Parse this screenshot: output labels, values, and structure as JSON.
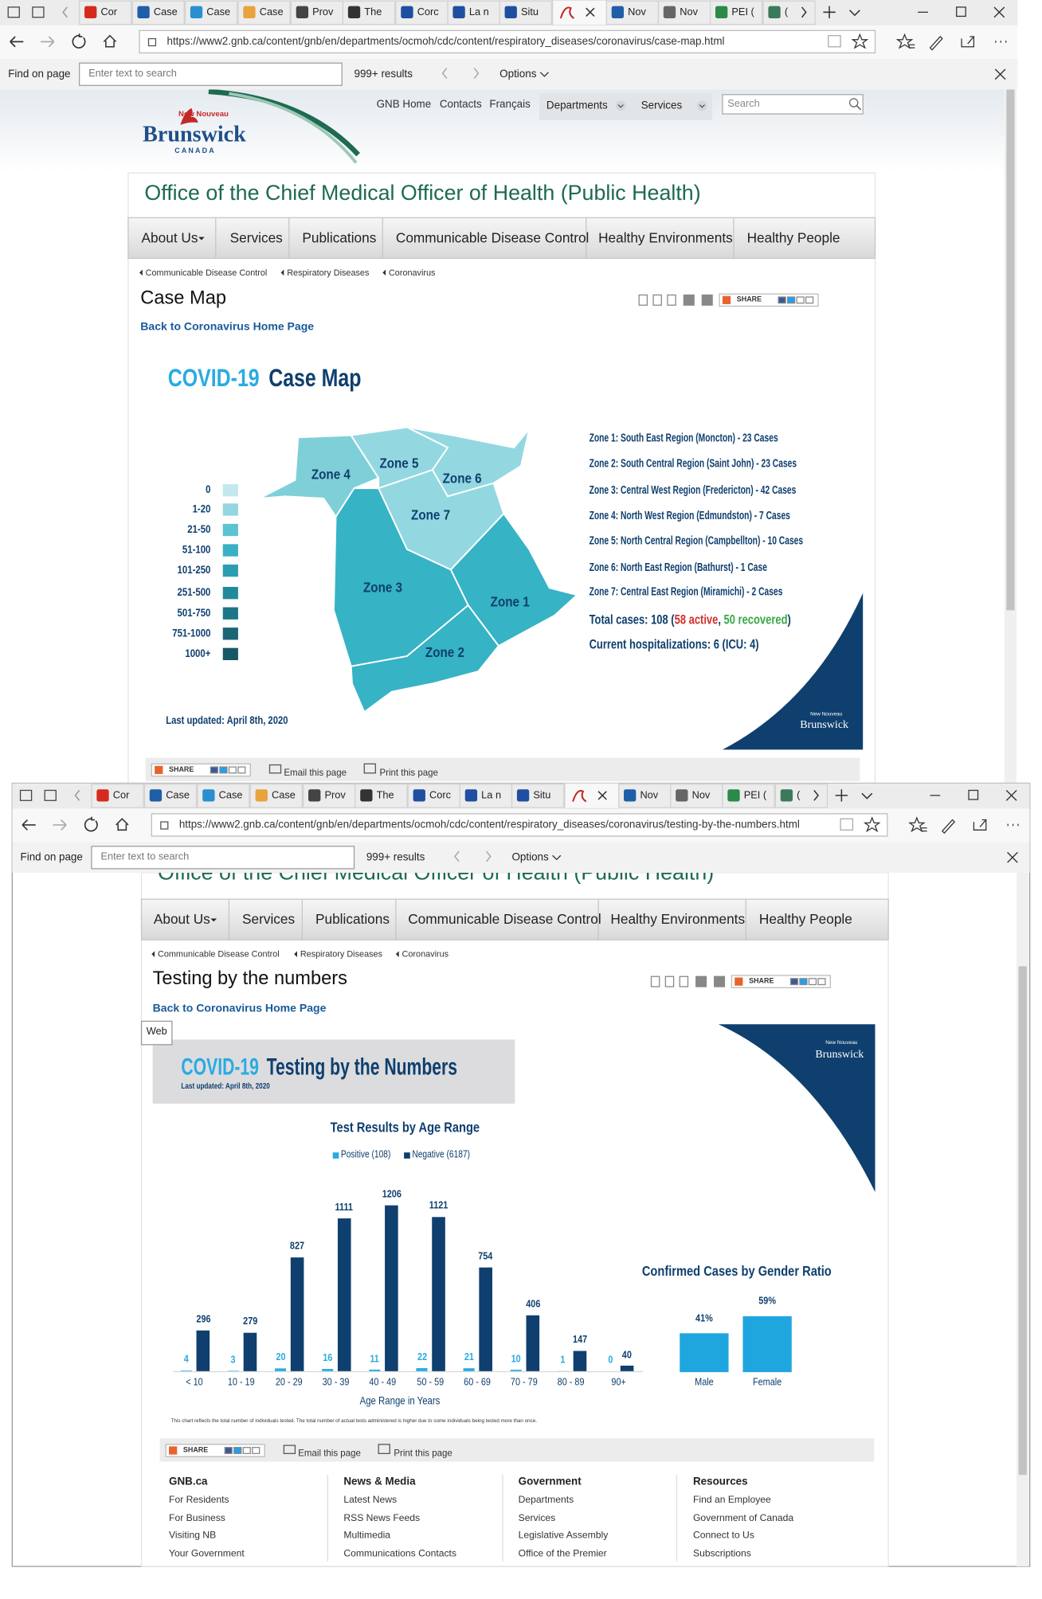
{
  "window1": {
    "tabs": [
      "Cor",
      "Case",
      "Case",
      "Case",
      "Prov",
      "The",
      "Corc",
      "La n",
      "Situ",
      "Nov",
      "Nov",
      "PEI (",
      "("
    ],
    "url": "https://www2.gnb.ca/content/gnb/en/departments/ocmoh/cdc/content/respiratory_diseases/coronavirus/case-map.html",
    "find_bar": {
      "label": "Find on page",
      "placeholder": "Enter text to search",
      "count": "999+ results",
      "options": "Options"
    },
    "header": {
      "logo_top": "New Nouveau",
      "logo": "Brunswick",
      "logo_sub": "C A N A D A",
      "links": [
        "GNB Home",
        "Contacts",
        "Français"
      ],
      "menus": [
        "Departments",
        "Services"
      ],
      "search": "Search"
    },
    "office_title": "Office of the Chief Medical Officer of Health (Public Health)",
    "nav": [
      "About Us",
      "Services",
      "Publications",
      "Communicable Disease Control",
      "Healthy Environments",
      "Healthy People"
    ],
    "breadcrumbs": [
      "Communicable Disease Control",
      "Respiratory Diseases",
      "Coronavirus"
    ],
    "page_title": "Case Map",
    "share": "SHARE",
    "back_link": "Back to Coronavirus Home Page",
    "case_map": {
      "title": "COVID-19",
      "subtitle": "Case Map",
      "legend": {
        "labels": [
          "0",
          "1-20",
          "21-50",
          "51-100",
          "101-250",
          "251-500",
          "501-750",
          "751-1000",
          "1000+"
        ],
        "colors": [
          "#c3e8ef",
          "#94d6e0",
          "#5cc3d2",
          "#39b0c3",
          "#2c9db1",
          "#21899c",
          "#1c7687",
          "#1a6675",
          "#175866"
        ]
      },
      "zone_labels": [
        "Zone 1",
        "Zone 2",
        "Zone 3",
        "Zone 4",
        "Zone 5",
        "Zone 6",
        "Zone 7"
      ],
      "zones": [
        "Zone 1: South East Region (Moncton) - 23 Cases",
        "Zone 2: South Central Region (Saint John) - 23 Cases",
        "Zone 3: Central West Region (Fredericton) - 42 Cases",
        "Zone 4: North West Region (Edmundston) - 7 Cases",
        "Zone 5: North Central Region (Campbellton) - 10 Cases",
        "Zone 6: North East Region (Bathurst) - 1 Case",
        "Zone 7: Central East Region (Miramichi) - 2 Cases"
      ],
      "total": {
        "label": "Total cases: 108 (",
        "active": "58 active",
        "separator": ", ",
        "recovered": "50 recovered",
        "close": ")"
      },
      "hospitalizations": "Current hospitalizations: 6 (ICU: 4)",
      "last_updated": "Last updated: April 8th, 2020",
      "brand_top": "New Nouveau",
      "brand": "Brunswick"
    },
    "page_tools": {
      "share": "SHARE",
      "email": "Email this page",
      "print": "Print this page"
    }
  },
  "window2": {
    "tabs": [
      "Cor",
      "Case",
      "Case",
      "Case",
      "Prov",
      "The",
      "Corc",
      "La n",
      "Situ",
      "Nov",
      "Nov",
      "PEI (",
      "("
    ],
    "url": "https://www2.gnb.ca/content/gnb/en/departments/ocmoh/cdc/content/respiratory_diseases/coronavirus/testing-by-the-numbers.html",
    "find_bar": {
      "label": "Find on page",
      "placeholder": "Enter text to search",
      "count": "999+ results",
      "options": "Options"
    },
    "office_title": "Office of the Chief Medical Officer of Health (Public Health)",
    "nav": [
      "About Us",
      "Services",
      "Publications",
      "Communicable Disease Control",
      "Healthy Environments",
      "Healthy People"
    ],
    "breadcrumbs": [
      "Communicable Disease Control",
      "Respiratory Diseases",
      "Coronavirus"
    ],
    "page_title": "Testing by the numbers",
    "share": "SHARE",
    "back_link": "Back to Coronavirus Home Page",
    "tooltip": "Web",
    "infographic": {
      "title": "COVID-19",
      "subtitle": "Testing by the Numbers",
      "last_updated": "Last updated: April 8th, 2020",
      "brand_top": "New Nouveau",
      "brand": "Brunswick",
      "age_chart": {
        "type": "bar",
        "title": "Test Results by Age Range",
        "categories": [
          "< 10",
          "10 - 19",
          "20 - 29",
          "30 - 39",
          "40 - 49",
          "50 - 59",
          "60 - 69",
          "70 - 79",
          "80 - 89",
          "90+"
        ],
        "series": [
          {
            "name": "Positive (108)",
            "color": "#29abe2",
            "values": [
              4,
              3,
              20,
              16,
              11,
              22,
              21,
              10,
              1,
              0
            ]
          },
          {
            "name": "Negative (6187)",
            "color": "#0f3f6e",
            "values": [
              296,
              279,
              827,
              1111,
              1206,
              1121,
              754,
              406,
              147,
              40
            ]
          }
        ],
        "x_label": "Age Range in Years"
      },
      "note": "This chart reflects the total number of individuals tested. The total number of actual tests administered is higher due to some individuals being tested more than once.",
      "gender_chart": {
        "type": "bar",
        "title": "Confirmed Cases by Gender Ratio",
        "categories": [
          "Male",
          "Female"
        ],
        "values": [
          41,
          59
        ],
        "value_labels": [
          "41%",
          "59%"
        ],
        "color": "#1fa6df"
      }
    },
    "page_tools": {
      "share": "SHARE",
      "email": "Email this page",
      "print": "Print this page"
    },
    "footer": [
      {
        "title": "GNB.ca",
        "links": [
          "For Residents",
          "For Business",
          "Visiting NB",
          "Your Government"
        ]
      },
      {
        "title": "News & Media",
        "links": [
          "Latest News",
          "RSS News Feeds",
          "Multimedia",
          "Communications Contacts"
        ]
      },
      {
        "title": "Government",
        "links": [
          "Departments",
          "Services",
          "Legislative Assembly",
          "Office of the Premier"
        ]
      },
      {
        "title": "Resources",
        "links": [
          "Find an Employee",
          "Government of Canada",
          "Connect to Us",
          "Subscriptions"
        ]
      }
    ]
  }
}
